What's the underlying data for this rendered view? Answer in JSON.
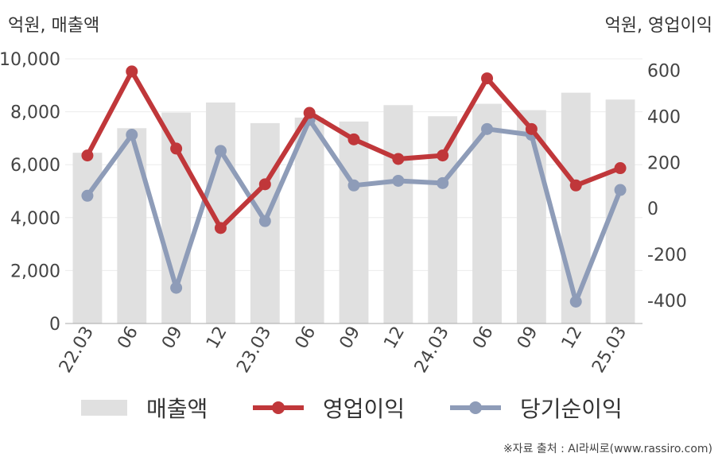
{
  "chart_data": {
    "type": "bar+line",
    "y_left_unit_label": "억원, 매출액",
    "y_right_unit_label": "억원, 영업이익",
    "categories": [
      "22.03",
      "06",
      "09",
      "12",
      "23.03",
      "06",
      "09",
      "12",
      "24.03",
      "06",
      "09",
      "12",
      "25.03"
    ],
    "y_left_ticks": [
      "0",
      "2,000",
      "4,000",
      "6,000",
      "8,000",
      "10,000"
    ],
    "y_right_ticks": [
      "-400",
      "-200",
      "0",
      "200",
      "400",
      "600"
    ],
    "ylim_left": [
      0,
      10000
    ],
    "ylim_right": [
      -500,
      650
    ],
    "series": [
      {
        "name": "매출액",
        "type": "bar",
        "axis": "left",
        "color": "#e0e0e0",
        "values": [
          6450,
          7380,
          7970,
          8350,
          7570,
          7780,
          7630,
          8250,
          7830,
          8300,
          8060,
          8720,
          8460
        ]
      },
      {
        "name": "영업이익",
        "type": "line",
        "axis": "right",
        "color": "#c0373a",
        "values": [
          230,
          595,
          260,
          -85,
          105,
          415,
          300,
          215,
          230,
          565,
          345,
          100,
          175
        ]
      },
      {
        "name": "당기순이익",
        "type": "line",
        "axis": "right",
        "color": "#8e9cb8",
        "values": [
          55,
          320,
          -345,
          250,
          -55,
          385,
          100,
          120,
          110,
          345,
          320,
          -405,
          80
        ]
      }
    ],
    "grid": "horizontal",
    "legend_position": "bottom"
  },
  "source_text": "※자료 출처 : AI라씨로(www.rassiro.com)"
}
